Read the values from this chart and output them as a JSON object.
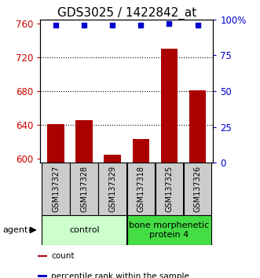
{
  "title": "GDS3025 / 1422842_at",
  "samples": [
    "GSM137327",
    "GSM137328",
    "GSM137329",
    "GSM137318",
    "GSM137325",
    "GSM137326"
  ],
  "counts": [
    641,
    645,
    604,
    623,
    730,
    681
  ],
  "percentiles": [
    96,
    96,
    96,
    96,
    97,
    96
  ],
  "ylim_left": [
    595,
    765
  ],
  "ylim_right": [
    0,
    100
  ],
  "yticks_left": [
    600,
    640,
    680,
    720,
    760
  ],
  "yticks_right": [
    0,
    25,
    50,
    75,
    100
  ],
  "ytick_labels_right": [
    "0",
    "25",
    "50",
    "75",
    "100%"
  ],
  "bar_color": "#aa0000",
  "dot_color": "#0000cc",
  "groups": [
    {
      "label": "control",
      "indices": [
        0,
        1,
        2
      ],
      "color": "#ccffcc"
    },
    {
      "label": "bone morphenetic\nprotein 4",
      "indices": [
        3,
        4,
        5
      ],
      "color": "#44dd44"
    }
  ],
  "agent_label": "agent",
  "legend_items": [
    {
      "color": "#aa0000",
      "label": "count"
    },
    {
      "color": "#0000cc",
      "label": "percentile rank within the sample"
    }
  ],
  "sample_box_color": "#cccccc",
  "title_fontsize": 11,
  "tick_fontsize": 8.5,
  "sample_fontsize": 7,
  "group_fontsize": 8
}
